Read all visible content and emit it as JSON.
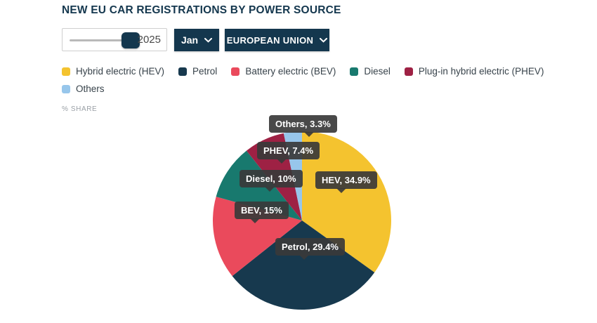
{
  "header": {
    "title": "NEW EU CAR REGISTRATIONS BY POWER SOURCE"
  },
  "controls": {
    "year_slider": {
      "value": "2025"
    },
    "month_dropdown": {
      "value": "Jan",
      "icon": "chevron-down"
    },
    "region_dropdown": {
      "value": "EUROPEAN UNION",
      "icon": "chevron-down"
    }
  },
  "axis_note": "% SHARE",
  "colors": {
    "brand_navy": "#14374E",
    "tooltip_bg": "#3A3A3A"
  },
  "chart_data": {
    "type": "pie",
    "title": "NEW EU CAR REGISTRATIONS BY POWER SOURCE",
    "unit": "% share",
    "start_angle_deg": 0,
    "direction": "clockwise",
    "legend_position": "top",
    "points": [
      {
        "id": "hev",
        "name": "Hybrid electric (HEV)",
        "value": 34.9,
        "color": "#F4C32F",
        "label": "HEV, 34.9%"
      },
      {
        "id": "petrol",
        "name": "Petrol",
        "value": 29.4,
        "color": "#17394E",
        "label": "Petrol, 29.4%"
      },
      {
        "id": "bev",
        "name": "Battery electric (BEV)",
        "value": 15,
        "color": "#EA4A5C",
        "label": "BEV, 15%"
      },
      {
        "id": "diesel",
        "name": "Diesel",
        "value": 10,
        "color": "#18796E",
        "label": "Diesel, 10%"
      },
      {
        "id": "phev",
        "name": "Plug-in hybrid electric (PHEV)",
        "value": 7.4,
        "color": "#9E2144",
        "label": "PHEV, 7.4%"
      },
      {
        "id": "others",
        "name": "Others",
        "value": 3.3,
        "color": "#97C6EB",
        "label": "Others, 3.3%"
      }
    ]
  }
}
